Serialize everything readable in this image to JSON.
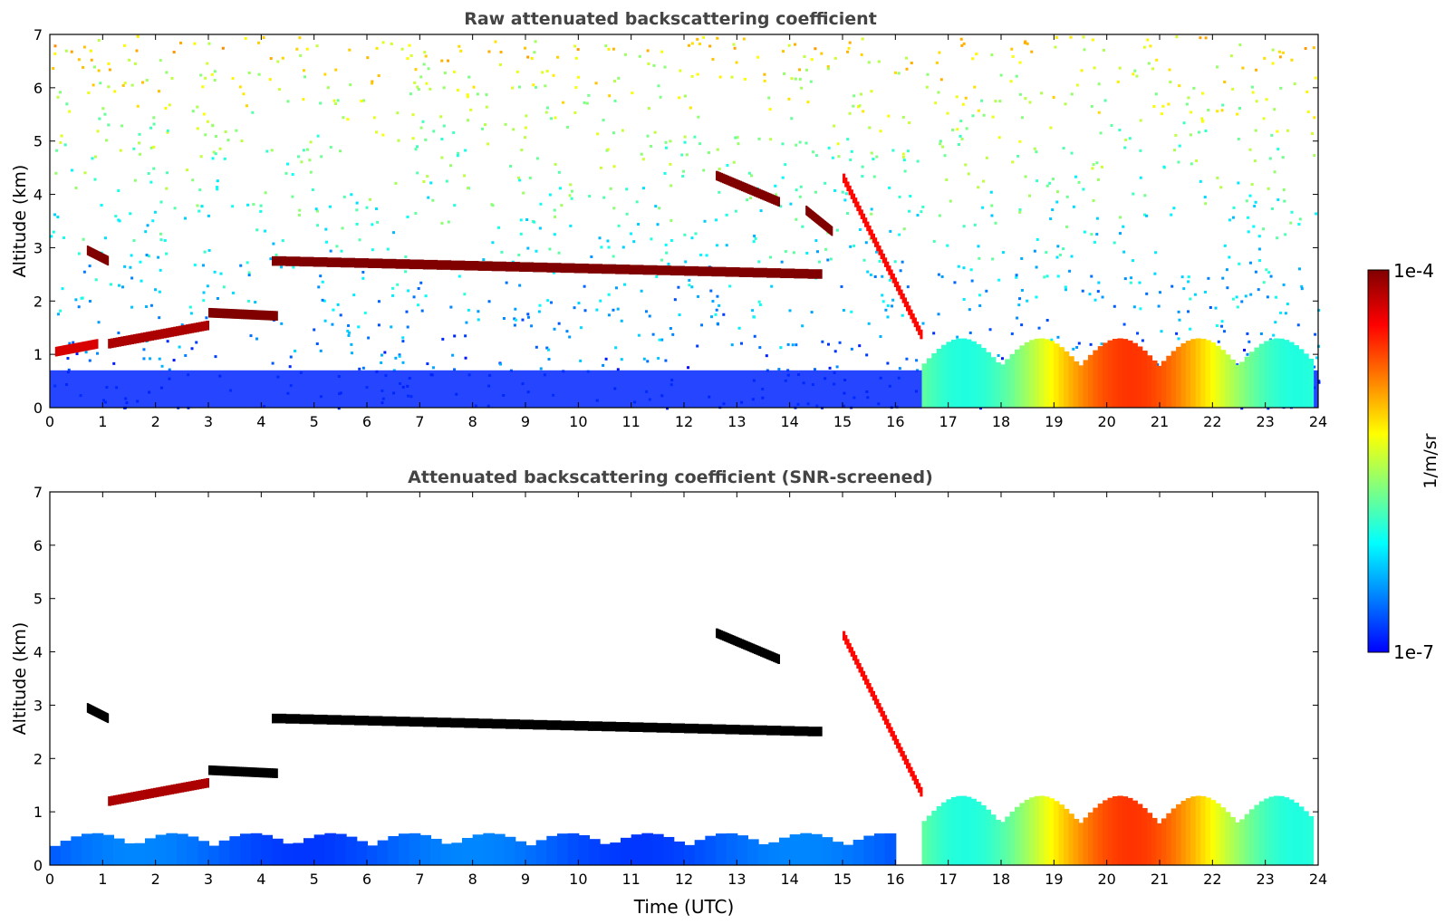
{
  "chart_data": [
    {
      "type": "heatmap",
      "title": "Raw attenuated backscattering coefficient",
      "xlabel": "",
      "ylabel": "Altitude (km)",
      "xlim": [
        0,
        24
      ],
      "ylim": [
        0,
        7
      ],
      "xticks": [
        "0",
        "1",
        "2",
        "3",
        "4",
        "5",
        "6",
        "7",
        "8",
        "9",
        "10",
        "11",
        "12",
        "13",
        "14",
        "15",
        "16",
        "17",
        "18",
        "19",
        "20",
        "21",
        "22",
        "23",
        "24"
      ],
      "yticks": [
        "0",
        "1",
        "2",
        "3",
        "4",
        "5",
        "6",
        "7"
      ],
      "features": [
        {
          "kind": "cloud-layer",
          "start": 4.2,
          "end": 14.6,
          "alt_start": 2.75,
          "alt_end": 2.5,
          "intensity": 1.0
        },
        {
          "kind": "cloud-layer",
          "start": 0.7,
          "end": 1.1,
          "alt_start": 2.95,
          "alt_end": 2.75,
          "intensity": 1.0
        },
        {
          "kind": "cloud-layer",
          "start": 3.0,
          "end": 4.3,
          "alt_start": 1.78,
          "alt_end": 1.72,
          "intensity": 1.0
        },
        {
          "kind": "cloud-layer",
          "start": 1.1,
          "end": 3.0,
          "alt_start": 1.2,
          "alt_end": 1.55,
          "intensity": 0.95
        },
        {
          "kind": "cloud-layer",
          "start": 0.1,
          "end": 0.9,
          "alt_start": 1.05,
          "alt_end": 1.2,
          "intensity": 0.9
        },
        {
          "kind": "cloud-layer",
          "start": 12.6,
          "end": 13.8,
          "alt_start": 4.35,
          "alt_end": 3.85,
          "intensity": 1.0
        },
        {
          "kind": "cloud-layer",
          "start": 14.3,
          "end": 14.8,
          "alt_start": 3.7,
          "alt_end": 3.3,
          "intensity": 1.0
        },
        {
          "kind": "cloud-layer",
          "start": 15.0,
          "end": 16.5,
          "alt_start": 4.3,
          "alt_end": 1.3,
          "intensity": 0.85
        },
        {
          "kind": "boundary-layer",
          "start": 16.5,
          "end": 23.9,
          "top_alt": 1.3,
          "intensity": 0.8
        }
      ]
    },
    {
      "type": "heatmap",
      "title": "Attenuated backscattering coefficient (SNR-screened)",
      "xlabel": "Time (UTC)",
      "ylabel": "Altitude (km)",
      "xlim": [
        0,
        24
      ],
      "ylim": [
        0,
        7
      ],
      "xticks": [
        "0",
        "1",
        "2",
        "3",
        "4",
        "5",
        "6",
        "7",
        "8",
        "9",
        "10",
        "11",
        "12",
        "13",
        "14",
        "15",
        "16",
        "17",
        "18",
        "19",
        "20",
        "21",
        "22",
        "23",
        "24"
      ],
      "yticks": [
        "0",
        "1",
        "2",
        "3",
        "4",
        "5",
        "6",
        "7"
      ],
      "features": [
        {
          "kind": "cloud-layer",
          "start": 4.2,
          "end": 14.6,
          "alt_start": 2.75,
          "alt_end": 2.5,
          "intensity": 1.0
        },
        {
          "kind": "cloud-layer",
          "start": 0.7,
          "end": 1.1,
          "alt_start": 2.95,
          "alt_end": 2.75,
          "intensity": 1.0
        },
        {
          "kind": "cloud-layer",
          "start": 3.0,
          "end": 4.3,
          "alt_start": 1.78,
          "alt_end": 1.72,
          "intensity": 1.0
        },
        {
          "kind": "cloud-layer",
          "start": 1.1,
          "end": 3.0,
          "alt_start": 1.2,
          "alt_end": 1.55,
          "intensity": 0.95
        },
        {
          "kind": "cloud-layer",
          "start": 12.6,
          "end": 13.8,
          "alt_start": 4.35,
          "alt_end": 3.85,
          "intensity": 1.0
        },
        {
          "kind": "cloud-layer",
          "start": 15.0,
          "end": 16.5,
          "alt_start": 4.3,
          "alt_end": 1.3,
          "intensity": 0.85
        },
        {
          "kind": "boundary-layer",
          "start": 0.0,
          "end": 16.0,
          "top_alt": 0.6,
          "intensity": 0.15
        },
        {
          "kind": "boundary-layer",
          "start": 16.5,
          "end": 23.9,
          "top_alt": 1.3,
          "intensity": 0.8
        }
      ]
    }
  ],
  "colorbar": {
    "label": "1/m/sr",
    "max_label": "1e-4",
    "min_label": "1e-7",
    "colormap": [
      "#0000ff",
      "#0080ff",
      "#00ffff",
      "#80ff80",
      "#ffff00",
      "#ff8000",
      "#ff0000",
      "#800000"
    ]
  }
}
